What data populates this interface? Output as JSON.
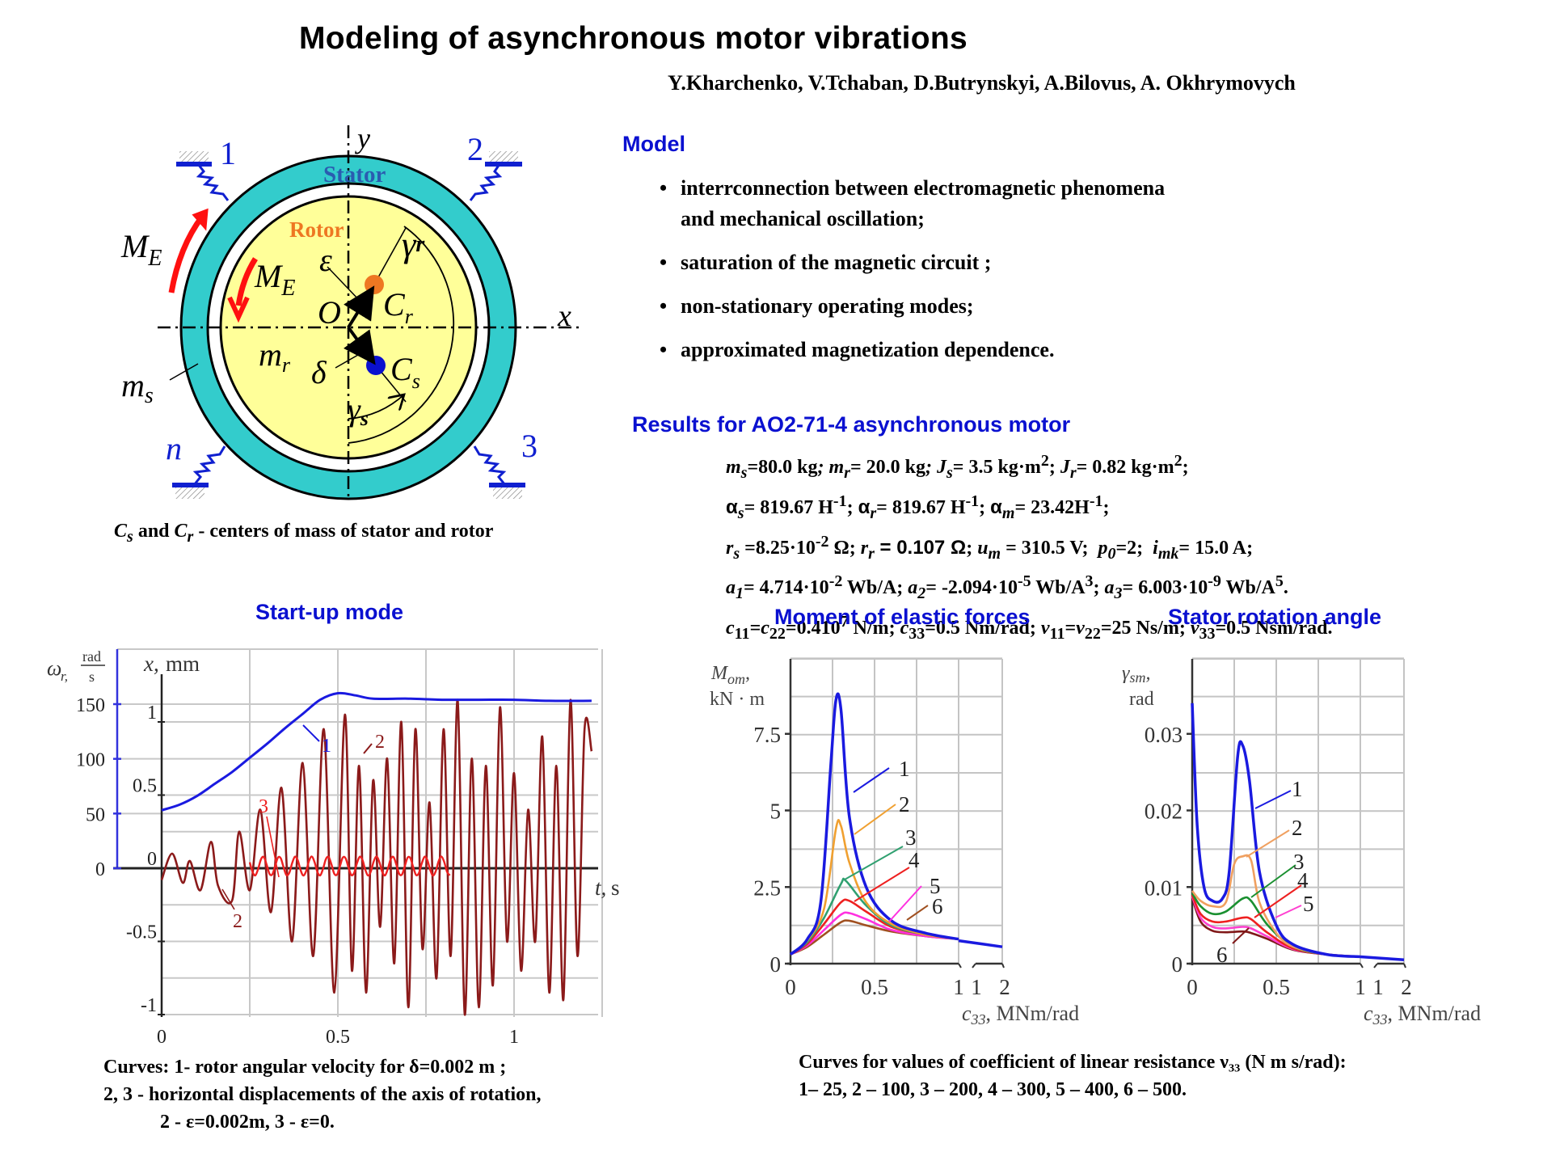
{
  "header": {
    "title": "Modeling of asynchronous motor vibrations",
    "authors": "Y.Kharchenko, V.Tchaban, D.Butrynskyi, A.Bilovus, A. Okhrymovych"
  },
  "diagram": {
    "labels": {
      "stator": "Stator",
      "rotor": "Rotor",
      "y_axis": "y",
      "x_axis": "x",
      "origin": "O",
      "ME_outer": "M",
      "ME_outer_sub": "E",
      "ME_inner": "M",
      "ME_inner_sub": "E",
      "epsilon": "ε",
      "gamma_r": "γ",
      "gamma_r_sub": "r",
      "gamma_s": "γ",
      "gamma_s_sub": "s",
      "Cr": "C",
      "Cr_sub": "r",
      "Cs": "C",
      "Cs_sub": "s",
      "mr": "m",
      "mr_sub": "r",
      "ms": "m",
      "ms_sub": "s",
      "delta": "δ",
      "spring_1": "1",
      "spring_2": "2",
      "spring_3": "3",
      "spring_n": "n"
    },
    "colors": {
      "stator": "#33cccc",
      "rotor": "#ffff99",
      "rotor_center": "#ee7722",
      "stator_center": "#0a10d0",
      "moment_arrows": "#ff1010",
      "springs": "#1020d0"
    },
    "caption_parts": {
      "c1": "C",
      "c1_sub": "s",
      "and": " and ",
      "c2": "C",
      "c2_sub": "r",
      "rest": "  -  centers of mass of stator and rotor"
    }
  },
  "model": {
    "heading": "Model",
    "bullets": [
      "interrconnection between electromagnetic phenomena and mechanical oscillation;",
      "saturation of the magnetic circuit ;",
      "non-stationary operating modes;",
      "approximated magnetization dependence."
    ],
    "bullet_0_line1": "interrconnection between electromagnetic phenomena",
    "bullet_0_line2": "and mechanical oscillation;"
  },
  "results": {
    "heading": "Results for AO2-71-4 asynchronous motor",
    "lines": [
      "ms=80.0 kg; mr= 20.0 kg; Js= 3.5 kg·m²; Jr= 0.82 kg·m²;",
      "αs= 819.67 H⁻¹; αr= 819.67 H⁻¹; αm= 23.42H⁻¹;",
      "rs =8.25·10⁻² Ω; rr = 0.107 Ω; um = 310.5 V;  p0=2;  imk= 15.0 A;",
      "a1= 4.714·10⁻² Wb/A; a2= -2.094·10⁻⁵ Wb/A³; a3= 6.003·10⁻⁹ Wb/A⁵.",
      "c11=c22=0.410⁷ N/m; c33=0.5 Nm/rad; ν11=ν22=25 Ns/m; ν33=0.5 Nsm/rad."
    ],
    "values": {
      "ms": "=80.0 kg",
      "mr": "= 20.0 kg",
      "Js": "= 3.5 kg·m",
      "Jr": "= 0.82 kg·m",
      "as": "= 819.67 H",
      "ar": "= 819.67 H",
      "am": "= 23.42H",
      "rs": " =8.25·10",
      "rr": " = 0.107 Ω",
      "um": " = 310.5 V",
      "p0": "=2",
      "imk": "= 15.0 A",
      "a1": "= 4.714·10",
      "a2": "= -2.094·10",
      "a3": "= 6.003·10",
      "c": "=0.410",
      "c33": "=0.5 Nm/rad",
      "nu": "=25 Ns/m",
      "nu33": "=0.5 Nsm/rad."
    }
  },
  "startup": {
    "heading": "Start-up mode",
    "caption_lines": [
      "Curves: 1- rotor angular velocity for  δ=0.002 m ;",
      "2, 3 - horizontal displacements of the axis of rotation,",
      "2 - ε=0.002m,  3 - ε=0."
    ]
  },
  "moment": {
    "heading": "Moment of elastic forces"
  },
  "stator_angle": {
    "heading": "Stator rotation angle"
  },
  "bottom_caption": {
    "lines": [
      "Curves for values of coefficient of linear resistance ν₃₃ (N m s/rad):",
      "1– 25, 2 – 100, 3 – 200, 4 – 300, 5 – 400, 6 – 500."
    ]
  },
  "chart_data": [
    {
      "type": "line",
      "title": "Start-up mode",
      "xlabel": "t, s",
      "ylabel": "ωr, rad/s (left, curve 1); x, mm (right, curves 2,3)",
      "x_ticks": [
        "0",
        "0.5",
        "1"
      ],
      "y_ticks_omega": [
        "0",
        "50",
        "100",
        "150"
      ],
      "y_ticks_x": [
        "-1",
        "-0.5",
        "0",
        "0.5",
        "1"
      ],
      "xlim": [
        0,
        1.25
      ],
      "ylim_omega": [
        -110,
        175
      ],
      "ylim_x": [
        -1.0,
        1.3
      ],
      "grid": true,
      "series": [
        {
          "name": "1 - rotor angular velocity ωr (δ=0.002 m)",
          "color": "#1a1ae0",
          "axis": "omega",
          "x": [
            0,
            0.05,
            0.1,
            0.15,
            0.2,
            0.25,
            0.3,
            0.35,
            0.4,
            0.45,
            0.5,
            0.55,
            0.6,
            0.7,
            0.8,
            0.9,
            1.0,
            1.1,
            1.22
          ],
          "y": [
            53,
            58,
            66,
            77,
            88,
            101,
            114,
            128,
            141,
            154,
            160,
            158,
            155,
            155,
            154,
            154,
            154,
            153,
            153
          ]
        },
        {
          "name": "2 - horizontal displacement x (ε=0.002 m)",
          "color": "#8b1a1a",
          "axis": "x",
          "x": [
            0,
            0.03,
            0.06,
            0.08,
            0.11,
            0.14,
            0.16,
            0.2,
            0.22,
            0.25,
            0.28,
            0.31,
            0.34,
            0.37,
            0.4,
            0.43,
            0.46,
            0.49,
            0.52,
            0.54,
            0.56,
            0.58,
            0.6,
            0.62,
            0.64,
            0.66,
            0.68,
            0.7,
            0.72,
            0.74,
            0.76,
            0.78,
            0.8,
            0.82,
            0.84,
            0.86,
            0.88,
            0.9,
            0.92,
            0.94,
            0.96,
            0.98,
            1.0,
            1.02,
            1.04,
            1.06,
            1.08,
            1.1,
            1.12,
            1.14,
            1.16,
            1.18,
            1.2,
            1.22
          ],
          "y": [
            -0.08,
            0.1,
            -0.1,
            0.05,
            -0.15,
            0.18,
            -0.12,
            -0.22,
            0.25,
            -0.15,
            0.4,
            -0.3,
            0.55,
            -0.5,
            0.72,
            -0.6,
            0.95,
            -0.85,
            1.05,
            -0.7,
            0.7,
            -0.85,
            0.6,
            -0.4,
            0.75,
            -0.65,
            1.0,
            -0.95,
            0.95,
            -0.55,
            0.45,
            -0.75,
            0.95,
            -0.6,
            1.15,
            -1.0,
            0.75,
            -0.95,
            0.7,
            -0.8,
            1.1,
            -0.5,
            0.65,
            -0.7,
            0.4,
            -0.5,
            0.9,
            -0.85,
            0.7,
            -0.9,
            1.15,
            -0.6,
            0.95,
            0.8
          ]
        },
        {
          "name": "3 - horizontal displacement x (ε=0)",
          "color": "#ee2020",
          "axis": "x",
          "x": [
            0.25,
            0.3,
            0.35,
            0.4,
            0.45,
            0.5,
            0.55,
            0.6,
            0.65,
            0.7,
            0.75,
            0.8,
            0.82
          ],
          "y": [
            -0.05,
            0.08,
            -0.05,
            0.08,
            -0.05,
            0.08,
            -0.05,
            0.08,
            -0.05,
            0.08,
            -0.05,
            0.06,
            -0.05
          ]
        }
      ],
      "annotations": [
        "1",
        "2",
        "3",
        "2"
      ]
    },
    {
      "type": "line",
      "title": "Moment of elastic forces",
      "xlabel": "c33, MNm/rad",
      "ylabel": "Mom, kN·m",
      "x_ticks": [
        "0",
        "0.5",
        "1",
        "1",
        "2"
      ],
      "y_ticks": [
        "0",
        "2.5",
        "5",
        "7.5"
      ],
      "ylim": [
        0,
        9.5
      ],
      "grid": true,
      "legend": [
        "1 – 25",
        "2 – 100",
        "3 – 200",
        "4 – 300",
        "5 – 400",
        "6 – 500"
      ],
      "series": [
        {
          "name": "1",
          "color": "#1a1ae0",
          "x": [
            0,
            0.1,
            0.18,
            0.24,
            0.27,
            0.3,
            0.35,
            0.45,
            0.6,
            0.8,
            1.0
          ],
          "y": [
            0.3,
            0.8,
            2.0,
            6.5,
            8.6,
            8.3,
            4.8,
            2.5,
            1.4,
            1.0,
            0.8
          ]
        },
        {
          "name": "2",
          "color": "#f0a030",
          "x": [
            0,
            0.1,
            0.2,
            0.27,
            0.3,
            0.35,
            0.45,
            0.6,
            0.8,
            1.0
          ],
          "y": [
            0.3,
            0.75,
            1.8,
            4.4,
            4.5,
            3.3,
            2.0,
            1.3,
            0.95,
            0.8
          ]
        },
        {
          "name": "3",
          "color": "#30a070",
          "x": [
            0,
            0.1,
            0.2,
            0.3,
            0.33,
            0.45,
            0.6,
            0.8,
            1.0
          ],
          "y": [
            0.3,
            0.7,
            1.5,
            2.6,
            2.7,
            1.9,
            1.25,
            0.95,
            0.8
          ]
        },
        {
          "name": "4",
          "color": "#ee2020",
          "x": [
            0,
            0.1,
            0.2,
            0.3,
            0.35,
            0.45,
            0.6,
            0.8,
            1.0
          ],
          "y": [
            0.3,
            0.65,
            1.3,
            2.0,
            2.05,
            1.7,
            1.2,
            0.95,
            0.8
          ]
        },
        {
          "name": "5",
          "color": "#ff30e0",
          "x": [
            0,
            0.1,
            0.2,
            0.3,
            0.35,
            0.45,
            0.6,
            0.8,
            1.0
          ],
          "y": [
            0.3,
            0.6,
            1.1,
            1.6,
            1.65,
            1.45,
            1.1,
            0.9,
            0.8
          ]
        },
        {
          "name": "6",
          "color": "#a05020",
          "x": [
            0,
            0.1,
            0.2,
            0.3,
            0.35,
            0.45,
            0.6,
            0.8,
            1.0
          ],
          "y": [
            0.3,
            0.55,
            0.95,
            1.35,
            1.4,
            1.25,
            1.05,
            0.9,
            0.8
          ]
        },
        {
          "name": "1 (1–2 range)",
          "color": "#1a1ae0",
          "x": [
            1,
            2
          ],
          "y": [
            0.75,
            0.55
          ]
        }
      ]
    },
    {
      "type": "line",
      "title": "Stator rotation angle",
      "xlabel": "c33, MNm/rad",
      "ylabel": "γsm, rad",
      "x_ticks": [
        "0",
        "0.5",
        "1",
        "1",
        "2"
      ],
      "y_ticks": [
        "0",
        "0.01",
        "0.02",
        "0.03"
      ],
      "ylim": [
        0,
        0.036
      ],
      "grid": true,
      "legend": [
        "1 – 25",
        "2 – 100",
        "3 – 200",
        "4 – 300",
        "5 – 400",
        "6 – 500"
      ],
      "series": [
        {
          "name": "1",
          "color": "#1a1ae0",
          "x": [
            0,
            0.03,
            0.07,
            0.12,
            0.18,
            0.22,
            0.27,
            0.3,
            0.34,
            0.4,
            0.5,
            0.6,
            0.8,
            1.0
          ],
          "y": [
            0.034,
            0.018,
            0.01,
            0.0082,
            0.0085,
            0.012,
            0.027,
            0.0285,
            0.024,
            0.012,
            0.005,
            0.0025,
            0.0012,
            0.0009
          ]
        },
        {
          "name": "2",
          "color": "#f0a060",
          "x": [
            0,
            0.05,
            0.12,
            0.2,
            0.25,
            0.3,
            0.35,
            0.4,
            0.5,
            0.6,
            0.8,
            1.0
          ],
          "y": [
            0.0095,
            0.0082,
            0.0075,
            0.008,
            0.013,
            0.014,
            0.0135,
            0.008,
            0.004,
            0.0022,
            0.0012,
            0.0009
          ]
        },
        {
          "name": "3",
          "color": "#1a9030",
          "x": [
            0,
            0.05,
            0.12,
            0.2,
            0.3,
            0.35,
            0.45,
            0.6,
            0.8,
            1.0
          ],
          "y": [
            0.0092,
            0.0075,
            0.0065,
            0.0068,
            0.0085,
            0.0082,
            0.005,
            0.0022,
            0.0012,
            0.0009
          ]
        },
        {
          "name": "4",
          "color": "#ee2020",
          "x": [
            0,
            0.05,
            0.12,
            0.2,
            0.3,
            0.35,
            0.45,
            0.6,
            0.8,
            1.0
          ],
          "y": [
            0.009,
            0.0065,
            0.0055,
            0.0055,
            0.006,
            0.0058,
            0.004,
            0.002,
            0.0012,
            0.0009
          ]
        },
        {
          "name": "5",
          "color": "#ff40d0",
          "x": [
            0,
            0.05,
            0.12,
            0.2,
            0.3,
            0.35,
            0.45,
            0.6,
            0.8,
            1.0
          ],
          "y": [
            0.0088,
            0.006,
            0.0048,
            0.0046,
            0.0048,
            0.0046,
            0.0035,
            0.0019,
            0.0012,
            0.0009
          ]
        },
        {
          "name": "6",
          "color": "#801818",
          "x": [
            0,
            0.05,
            0.12,
            0.2,
            0.3,
            0.35,
            0.45,
            0.6,
            0.8,
            1.0
          ],
          "y": [
            0.0086,
            0.0055,
            0.0043,
            0.0041,
            0.0042,
            0.004,
            0.0032,
            0.0018,
            0.0012,
            0.0009
          ]
        },
        {
          "name": "1 (1–2 range)",
          "color": "#1a1ae0",
          "x": [
            1,
            2
          ],
          "y": [
            0.0009,
            0.0005
          ]
        }
      ]
    }
  ]
}
